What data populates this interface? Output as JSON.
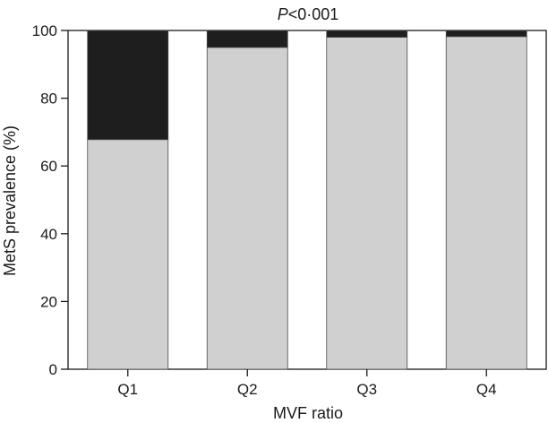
{
  "chart_data": {
    "type": "bar",
    "stacked": true,
    "title": "",
    "annotation": {
      "italic": "P",
      "rest": "<0·001"
    },
    "xlabel": "MVF ratio",
    "ylabel": "MetS prevalence (%)",
    "ylim": [
      0,
      100
    ],
    "yticks": [
      0,
      20,
      40,
      60,
      80,
      100
    ],
    "categories": [
      "Q1",
      "Q2",
      "Q3",
      "Q4"
    ],
    "series": [
      {
        "values": [
          67.8,
          95.0,
          98.0,
          98.2
        ],
        "color": "#d0d0d0"
      },
      {
        "values": [
          32.2,
          5.0,
          2.0,
          1.8
        ],
        "color": "#1e1e1e"
      }
    ],
    "grid": false,
    "legend": "none"
  }
}
